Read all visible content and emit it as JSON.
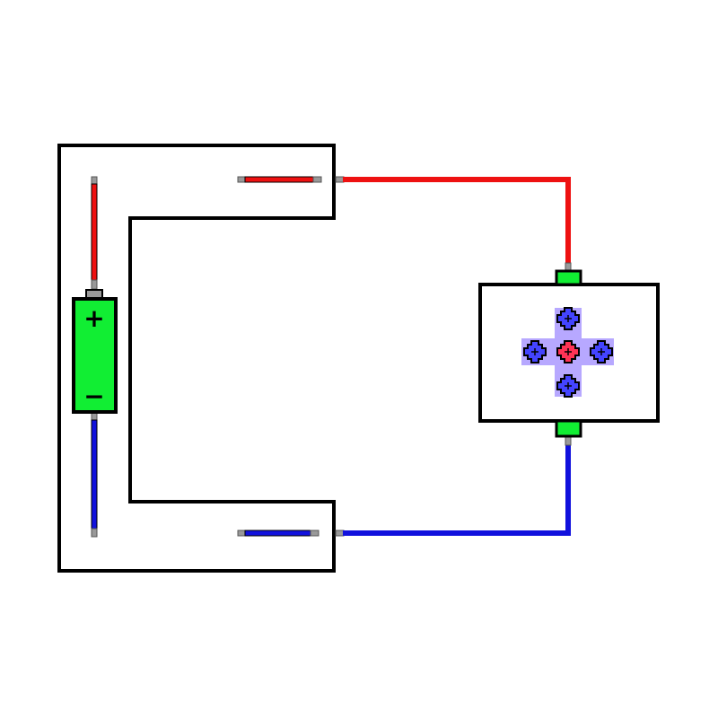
{
  "colors": {
    "positive_wire": "#ee1111",
    "negative_wire": "#1111dd",
    "battery_body": "#11ee33",
    "terminal": "#11ee33",
    "lead_tip": "#999999",
    "outline": "#000000",
    "ion_positive": "#ff3355",
    "ion_negative": "#4444ff",
    "ion_glow": "#aa99ff"
  },
  "battery": {
    "positive_symbol": "+",
    "negative_symbol": "−"
  },
  "icons": {
    "battery": "battery-icon",
    "ion_positive": "plus-ion-icon",
    "ion_negative": "minus-ion-icon"
  }
}
